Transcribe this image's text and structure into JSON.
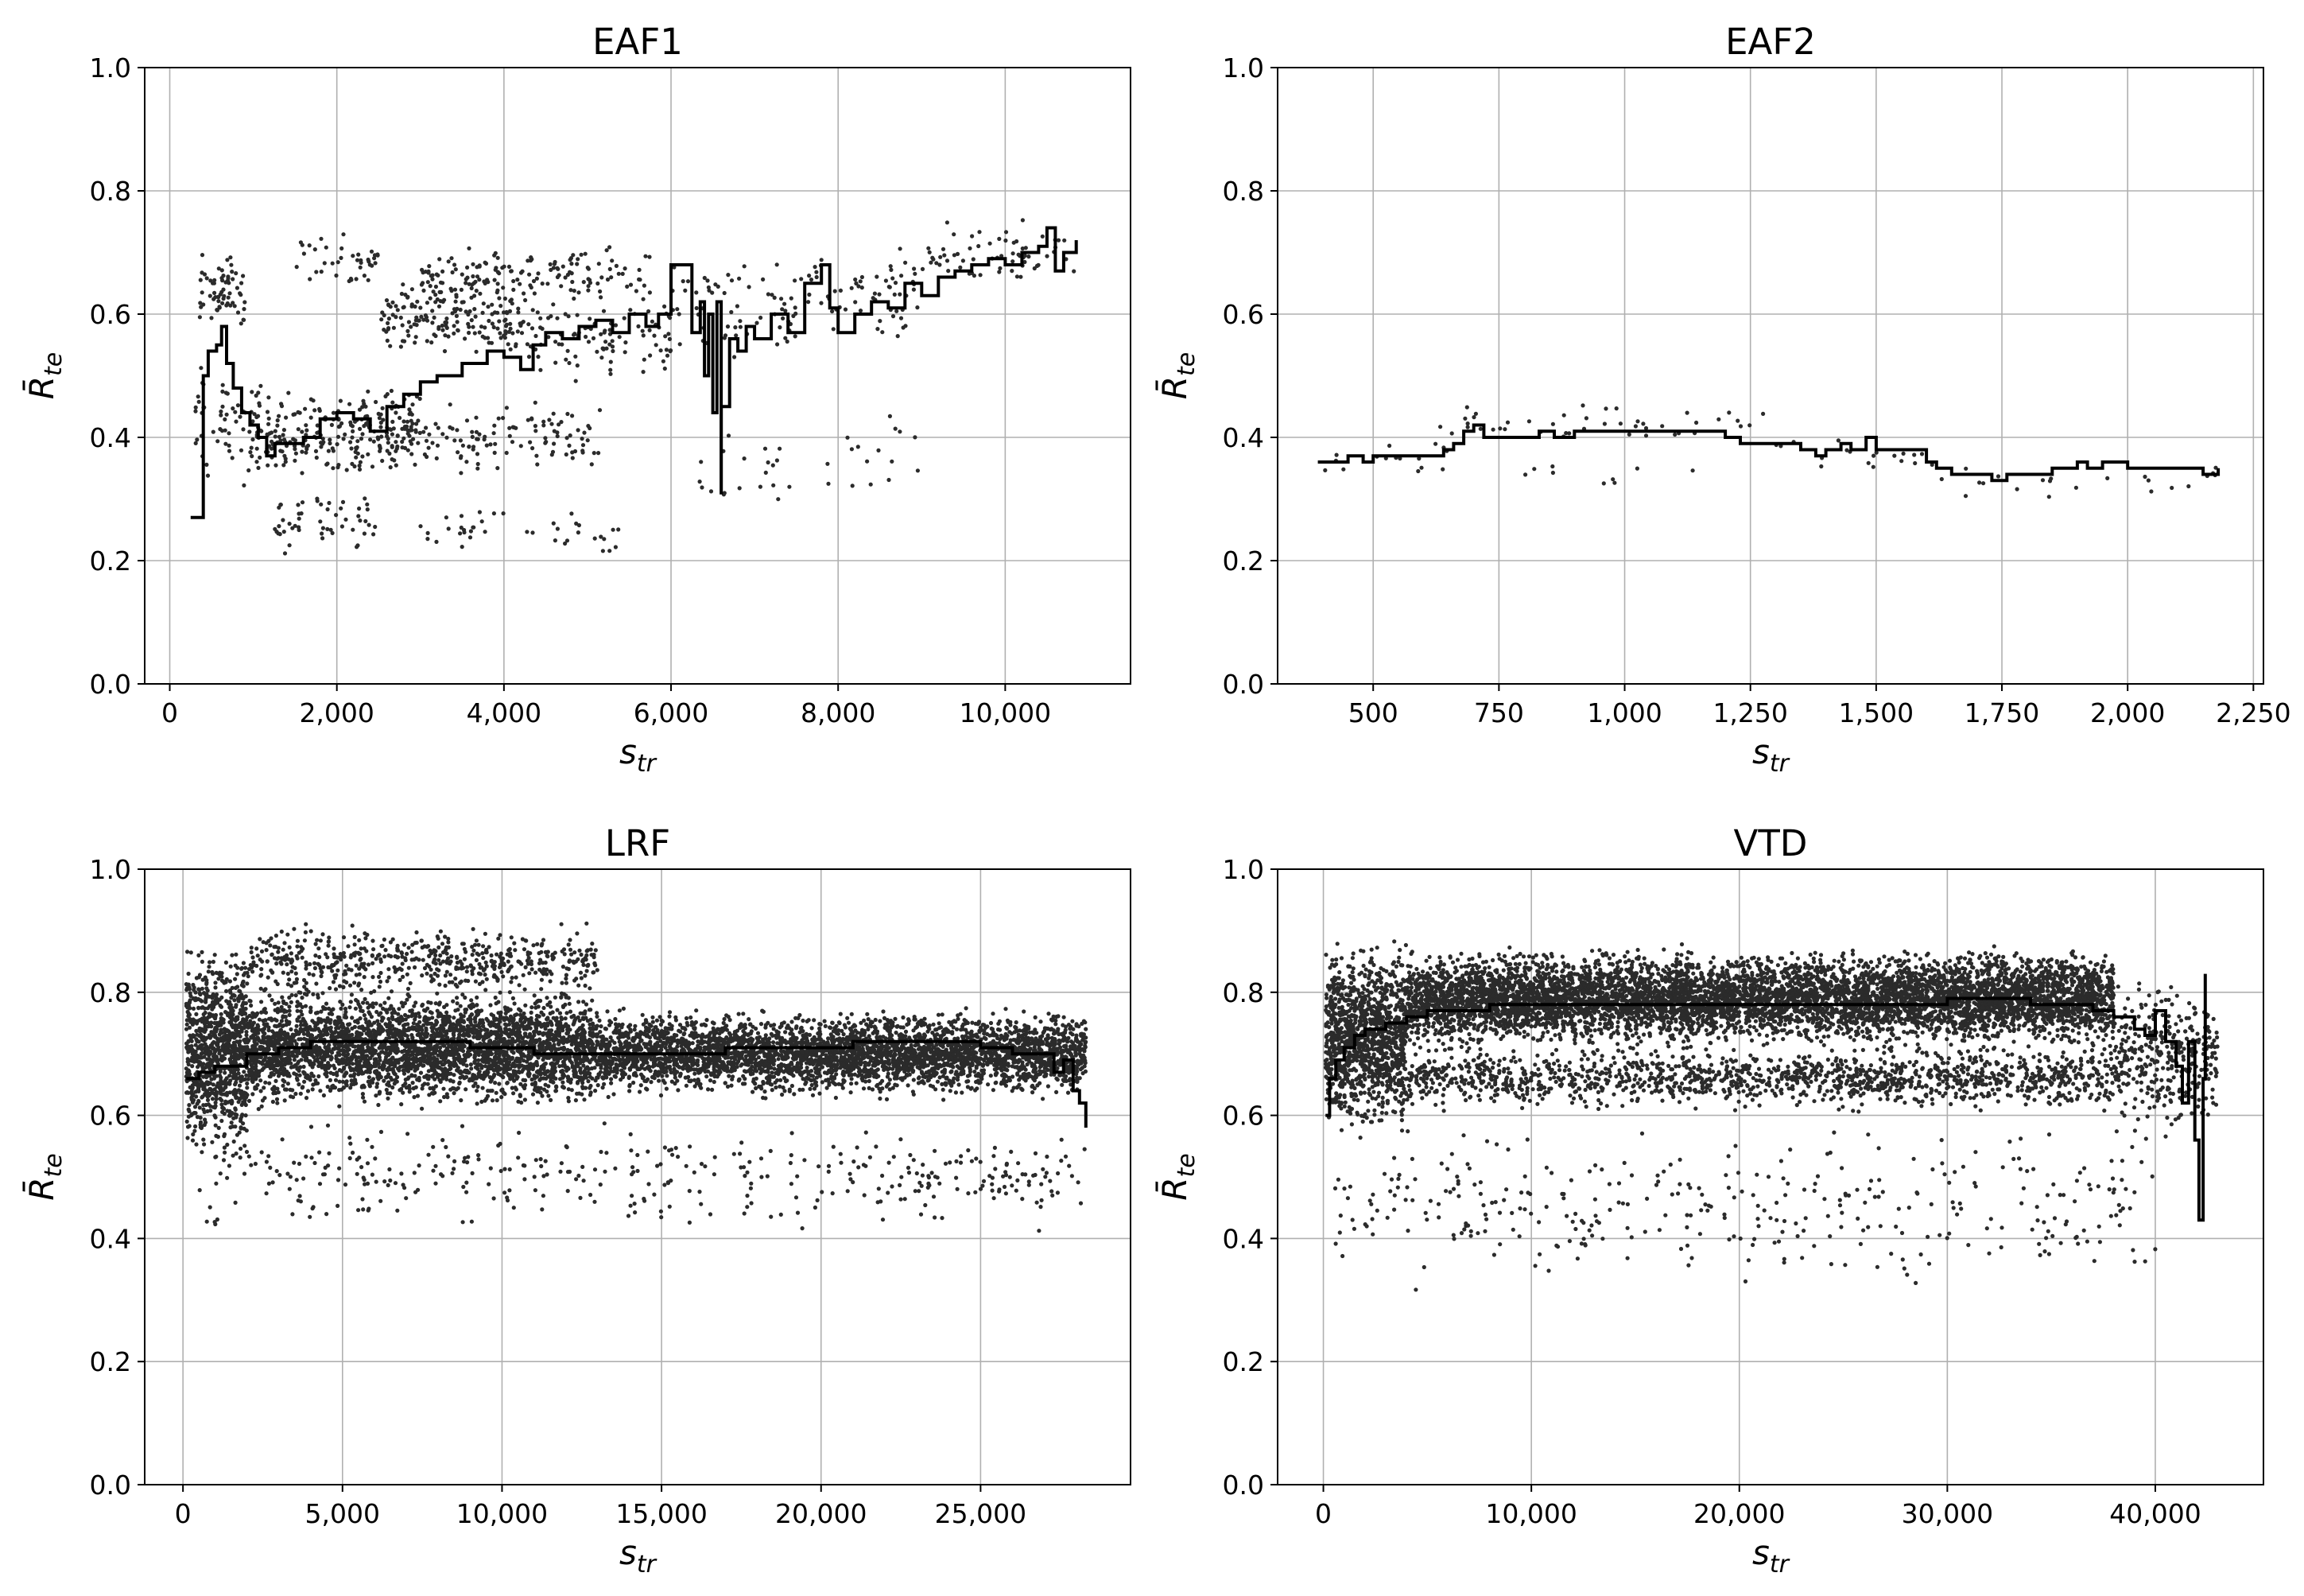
{
  "chart_data": [
    {
      "type": "scatter",
      "title": "EAF1",
      "xlabel": "s",
      "xlabel_sub": "tr",
      "ylabel": "R̄",
      "ylabel_sub": "te",
      "xlim": [
        -300,
        11500
      ],
      "ylim": [
        0.0,
        1.0
      ],
      "xticks": [
        0,
        2000,
        4000,
        6000,
        8000,
        10000
      ],
      "xtick_labels": [
        "0",
        "2,000",
        "4,000",
        "6,000",
        "8,000",
        "10,000"
      ],
      "yticks": [
        0.0,
        0.2,
        0.4,
        0.6,
        0.8,
        1.0
      ],
      "ytick_labels": [
        "0.0",
        "0.2",
        "0.4",
        "0.6",
        "0.8",
        "1.0"
      ],
      "grid": true,
      "scatter": {
        "x_range": [
          300,
          10850
        ],
        "count": 1300,
        "clusters": [
          {
            "x": [
              350,
              900
            ],
            "y": [
              0.55,
              0.72
            ],
            "w": 0.05
          },
          {
            "x": [
              300,
              1100
            ],
            "y": [
              0.3,
              0.55
            ],
            "w": 0.05
          },
          {
            "x": [
              1000,
              3000
            ],
            "y": [
              0.32,
              0.5
            ],
            "w": 0.18
          },
          {
            "x": [
              1200,
              2500
            ],
            "y": [
              0.2,
              0.32
            ],
            "w": 0.04
          },
          {
            "x": [
              1500,
              2500
            ],
            "y": [
              0.62,
              0.75
            ],
            "w": 0.03
          },
          {
            "x": [
              2500,
              4200
            ],
            "y": [
              0.52,
              0.66
            ],
            "w": 0.13
          },
          {
            "x": [
              2500,
              5200
            ],
            "y": [
              0.32,
              0.48
            ],
            "w": 0.1
          },
          {
            "x": [
              3000,
              5800
            ],
            "y": [
              0.6,
              0.72
            ],
            "w": 0.12
          },
          {
            "x": [
              3000,
              5500
            ],
            "y": [
              0.2,
              0.3
            ],
            "w": 0.03
          },
          {
            "x": [
              4200,
              6000
            ],
            "y": [
              0.48,
              0.64
            ],
            "w": 0.08
          },
          {
            "x": [
              6000,
              7500
            ],
            "y": [
              0.5,
              0.72
            ],
            "w": 0.05
          },
          {
            "x": [
              6300,
              7500
            ],
            "y": [
              0.26,
              0.45
            ],
            "w": 0.015
          },
          {
            "x": [
              7500,
              9000
            ],
            "y": [
              0.55,
              0.72
            ],
            "w": 0.05
          },
          {
            "x": [
              7800,
              9000
            ],
            "y": [
              0.26,
              0.48
            ],
            "w": 0.012
          },
          {
            "x": [
              9000,
              10850
            ],
            "y": [
              0.62,
              0.77
            ],
            "w": 0.05
          }
        ]
      },
      "series": [
        {
          "x": [
            250,
            400,
            401,
            460,
            560,
            620,
            680,
            760,
            860,
            960,
            1060,
            1160,
            1260,
            1400,
            1600,
            1800,
            2000,
            2200,
            2400,
            2600,
            2800,
            3000,
            3200,
            3500,
            3800,
            4000,
            4200,
            4350,
            4500,
            4700,
            4900,
            5100,
            5300,
            5500,
            5700,
            5850,
            6000,
            6100,
            6250,
            6350,
            6400,
            6450,
            6500,
            6550,
            6600,
            6601,
            6700,
            6701,
            6800,
            6900,
            7000,
            7200,
            7400,
            7600,
            7800,
            7900,
            8000,
            8200,
            8400,
            8600,
            8800,
            9000,
            9200,
            9400,
            9600,
            9800,
            10000,
            10200,
            10400,
            10500,
            10600,
            10700,
            10850
          ],
          "y": [
            0.27,
            0.27,
            0.5,
            0.54,
            0.55,
            0.58,
            0.52,
            0.48,
            0.44,
            0.42,
            0.4,
            0.37,
            0.39,
            0.39,
            0.4,
            0.43,
            0.44,
            0.43,
            0.41,
            0.45,
            0.47,
            0.49,
            0.5,
            0.52,
            0.54,
            0.53,
            0.51,
            0.55,
            0.57,
            0.56,
            0.58,
            0.59,
            0.57,
            0.6,
            0.58,
            0.6,
            0.68,
            0.68,
            0.57,
            0.62,
            0.5,
            0.6,
            0.44,
            0.62,
            0.31,
            0.45,
            0.45,
            0.56,
            0.54,
            0.58,
            0.56,
            0.6,
            0.57,
            0.65,
            0.68,
            0.61,
            0.57,
            0.6,
            0.62,
            0.61,
            0.65,
            0.63,
            0.66,
            0.67,
            0.68,
            0.69,
            0.68,
            0.7,
            0.71,
            0.74,
            0.67,
            0.7,
            0.72
          ]
        }
      ]
    },
    {
      "type": "scatter",
      "title": "EAF2",
      "xlabel": "s",
      "xlabel_sub": "tr",
      "ylabel": "R̄",
      "ylabel_sub": "te",
      "xlim": [
        310,
        2270
      ],
      "ylim": [
        0.0,
        1.0
      ],
      "xticks": [
        500,
        750,
        1000,
        1250,
        1500,
        1750,
        2000,
        2250
      ],
      "xtick_labels": [
        "500",
        "750",
        "1,000",
        "1,250",
        "1,500",
        "1,750",
        "2,000",
        "2,250"
      ],
      "yticks": [
        0.0,
        0.2,
        0.4,
        0.6,
        0.8,
        1.0
      ],
      "ytick_labels": [
        "0.0",
        "0.2",
        "0.4",
        "0.6",
        "0.8",
        "1.0"
      ],
      "grid": true,
      "scatter": {
        "x_range": [
          390,
          2180
        ],
        "count": 110,
        "clusters": [
          {
            "x": [
              390,
              650
            ],
            "y": [
              0.32,
              0.42
            ],
            "w": 0.15
          },
          {
            "x": [
              650,
              1300
            ],
            "y": [
              0.38,
              0.46
            ],
            "w": 0.4
          },
          {
            "x": [
              800,
              1200
            ],
            "y": [
              0.31,
              0.37
            ],
            "w": 0.08
          },
          {
            "x": [
              1300,
              1600
            ],
            "y": [
              0.33,
              0.42
            ],
            "w": 0.15
          },
          {
            "x": [
              1600,
              2180
            ],
            "y": [
              0.28,
              0.38
            ],
            "w": 0.2
          },
          {
            "x": [
              1550,
              2180
            ],
            "y": [
              0.22,
              0.47
            ],
            "w": 0.02
          }
        ]
      },
      "series": [
        {
          "x": [
            390,
            420,
            450,
            470,
            480,
            500,
            540,
            600,
            640,
            660,
            680,
            700,
            720,
            740,
            770,
            800,
            830,
            860,
            900,
            950,
            1000,
            1050,
            1100,
            1150,
            1200,
            1230,
            1260,
            1300,
            1350,
            1380,
            1400,
            1430,
            1450,
            1480,
            1500,
            1530,
            1560,
            1590,
            1600,
            1620,
            1650,
            1680,
            1700,
            1730,
            1760,
            1800,
            1850,
            1880,
            1900,
            1920,
            1950,
            2000,
            2050,
            2100,
            2150,
            2170,
            2180
          ],
          "y": [
            0.36,
            0.36,
            0.37,
            0.37,
            0.36,
            0.37,
            0.37,
            0.37,
            0.38,
            0.39,
            0.41,
            0.42,
            0.4,
            0.4,
            0.4,
            0.4,
            0.41,
            0.4,
            0.41,
            0.41,
            0.41,
            0.41,
            0.41,
            0.41,
            0.4,
            0.39,
            0.39,
            0.39,
            0.38,
            0.37,
            0.38,
            0.39,
            0.38,
            0.4,
            0.38,
            0.38,
            0.38,
            0.38,
            0.36,
            0.35,
            0.34,
            0.34,
            0.34,
            0.33,
            0.34,
            0.34,
            0.35,
            0.35,
            0.36,
            0.35,
            0.36,
            0.35,
            0.35,
            0.35,
            0.34,
            0.34,
            0.35
          ]
        }
      ]
    },
    {
      "type": "scatter",
      "title": "LRF",
      "xlabel": "s",
      "xlabel_sub": "tr",
      "ylabel": "R̄",
      "ylabel_sub": "te",
      "xlim": [
        -1200,
        29700
      ],
      "ylim": [
        0.0,
        1.0
      ],
      "xticks": [
        0,
        5000,
        10000,
        15000,
        20000,
        25000
      ],
      "xtick_labels": [
        "0",
        "5,000",
        "10,000",
        "15,000",
        "20,000",
        "25,000"
      ],
      "yticks": [
        0.0,
        0.2,
        0.4,
        0.6,
        0.8,
        1.0
      ],
      "ytick_labels": [
        "0.0",
        "0.2",
        "0.4",
        "0.6",
        "0.8",
        "1.0"
      ],
      "grid": true,
      "scatter": {
        "x_range": [
          100,
          28300
        ],
        "count": 9000,
        "clusters": [
          {
            "x": [
              100,
              2000
            ],
            "y": [
              0.5,
              0.9
            ],
            "w": 0.1
          },
          {
            "x": [
              2000,
              13000
            ],
            "y": [
              0.6,
              0.82
            ],
            "w": 0.35
          },
          {
            "x": [
              2000,
              13000
            ],
            "y": [
              0.78,
              0.92
            ],
            "w": 0.06
          },
          {
            "x": [
              13000,
              28300
            ],
            "y": [
              0.62,
              0.78
            ],
            "w": 0.4
          },
          {
            "x": [
              500,
              28300
            ],
            "y": [
              0.4,
              0.6
            ],
            "w": 0.04
          }
        ]
      },
      "series": [
        {
          "x": [
            100,
            500,
            1000,
            2000,
            3000,
            4000,
            5000,
            6000,
            7000,
            8000,
            9000,
            10000,
            11000,
            12000,
            13000,
            14000,
            15000,
            16000,
            17000,
            18000,
            19000,
            20000,
            21000,
            22000,
            23000,
            24000,
            25000,
            26000,
            26500,
            27000,
            27300,
            27600,
            27900,
            28100,
            28300
          ],
          "y": [
            0.66,
            0.67,
            0.68,
            0.7,
            0.71,
            0.72,
            0.72,
            0.72,
            0.72,
            0.72,
            0.71,
            0.71,
            0.7,
            0.7,
            0.7,
            0.7,
            0.7,
            0.7,
            0.71,
            0.71,
            0.71,
            0.71,
            0.72,
            0.72,
            0.72,
            0.72,
            0.71,
            0.7,
            0.7,
            0.7,
            0.67,
            0.69,
            0.64,
            0.62,
            0.58
          ]
        }
      ]
    },
    {
      "type": "scatter",
      "title": "VTD",
      "xlabel": "s",
      "xlabel_sub": "tr",
      "ylabel": "R̄",
      "ylabel_sub": "te",
      "xlim": [
        -2200,
        45200
      ],
      "ylim": [
        0.0,
        1.0
      ],
      "xticks": [
        0,
        10000,
        20000,
        30000,
        40000
      ],
      "xtick_labels": [
        "0",
        "10,000",
        "20,000",
        "30,000",
        "40,000"
      ],
      "yticks": [
        0.0,
        0.2,
        0.4,
        0.6,
        0.8,
        1.0
      ],
      "ytick_labels": [
        "0.0",
        "0.2",
        "0.4",
        "0.6",
        "0.8",
        "1.0"
      ],
      "grid": true,
      "scatter": {
        "x_range": [
          100,
          43000
        ],
        "count": 10000,
        "clusters": [
          {
            "x": [
              100,
              4000
            ],
            "y": [
              0.55,
              0.9
            ],
            "w": 0.1
          },
          {
            "x": [
              4000,
              38000
            ],
            "y": [
              0.7,
              0.88
            ],
            "w": 0.55
          },
          {
            "x": [
              4000,
              38000
            ],
            "y": [
              0.6,
              0.72
            ],
            "w": 0.12
          },
          {
            "x": [
              38000,
              43000
            ],
            "y": [
              0.55,
              0.85
            ],
            "w": 0.03
          },
          {
            "x": [
              500,
              40000
            ],
            "y": [
              0.3,
              0.6
            ],
            "w": 0.03
          }
        ]
      },
      "series": [
        {
          "x": [
            100,
            300,
            600,
            1000,
            1500,
            2000,
            3000,
            4000,
            5000,
            6000,
            8000,
            10000,
            12000,
            14000,
            16000,
            18000,
            20000,
            22000,
            24000,
            26000,
            28000,
            30000,
            32000,
            34000,
            36000,
            37000,
            38000,
            39000,
            39500,
            40000,
            40500,
            41000,
            41300,
            41600,
            41900,
            42100,
            42300,
            42400
          ],
          "y": [
            0.6,
            0.66,
            0.69,
            0.71,
            0.73,
            0.74,
            0.75,
            0.76,
            0.77,
            0.77,
            0.78,
            0.78,
            0.78,
            0.78,
            0.78,
            0.78,
            0.78,
            0.78,
            0.78,
            0.78,
            0.78,
            0.79,
            0.79,
            0.78,
            0.78,
            0.77,
            0.76,
            0.74,
            0.73,
            0.77,
            0.72,
            0.68,
            0.62,
            0.72,
            0.56,
            0.43,
            0.66,
            0.83
          ]
        }
      ]
    }
  ]
}
